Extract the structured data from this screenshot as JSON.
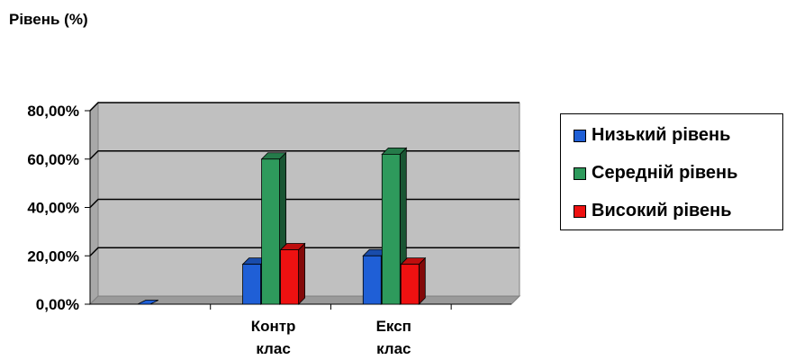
{
  "chart_data": {
    "type": "bar",
    "title": "",
    "ylabel": "Рівень (%)",
    "xlabel": "",
    "categories": [
      [
        "Контр",
        "клас"
      ],
      [
        "Експ",
        "клас"
      ]
    ],
    "series": [
      {
        "name": "Низький рівень",
        "color": "#1f5fd6",
        "values": [
          16.5,
          20.0
        ]
      },
      {
        "name": "Середній рівень",
        "color": "#2e9a5c",
        "values": [
          60.0,
          62.0
        ]
      },
      {
        "name": "Високий рівень",
        "color": "#ee1111",
        "values": [
          22.5,
          16.5
        ]
      }
    ],
    "ylim": [
      0,
      80
    ],
    "yticks": [
      "0,00%",
      "20,00%",
      "40,00%",
      "60,00%",
      "80,00%"
    ],
    "grid": true,
    "legend": "right",
    "leading_empty_category": true
  }
}
